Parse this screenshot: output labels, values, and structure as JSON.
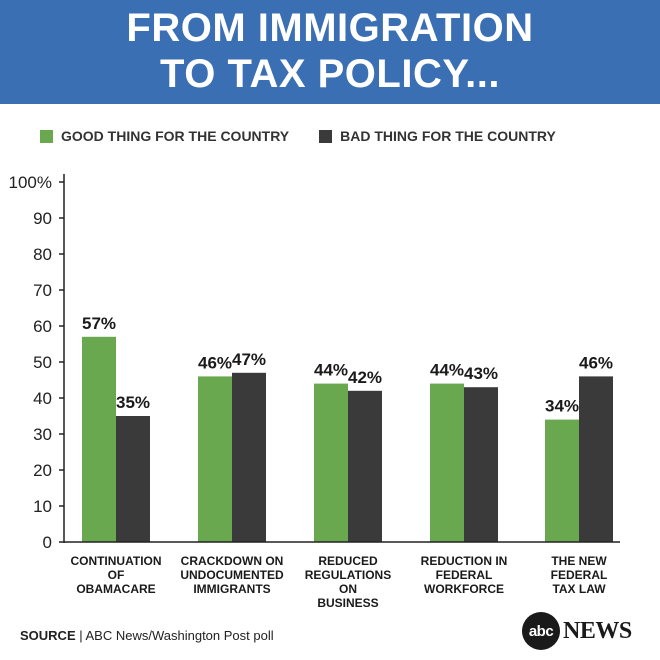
{
  "header": {
    "line1": "FROM IMMIGRATION",
    "line2": "TO TAX POLICY..."
  },
  "legend": {
    "good_label": "GOOD THING FOR THE COUNTRY",
    "bad_label": "BAD THING FOR THE COUNTRY"
  },
  "colors": {
    "good": "#69a84f",
    "bad": "#3a3a3a",
    "banner": "#3a6fb4"
  },
  "chart_data": {
    "type": "bar",
    "categories": [
      [
        "CONTINUATION",
        "OF",
        "OBAMACARE"
      ],
      [
        "CRACKDOWN ON",
        "UNDOCUMENTED",
        "IMMIGRANTS"
      ],
      [
        "REDUCED",
        "REGULATIONS",
        "ON",
        "BUSINESS"
      ],
      [
        "REDUCTION IN",
        "FEDERAL",
        "WORKFORCE"
      ],
      [
        "THE NEW",
        "FEDERAL",
        "TAX LAW"
      ]
    ],
    "series": [
      {
        "name": "GOOD THING FOR THE COUNTRY",
        "values": [
          57,
          46,
          44,
          44,
          34
        ],
        "labels": [
          "57%",
          "46%",
          "44%",
          "44%",
          "34%"
        ]
      },
      {
        "name": "BAD THING FOR THE COUNTRY",
        "values": [
          35,
          47,
          42,
          43,
          46
        ],
        "labels": [
          "35%",
          "47%",
          "42%",
          "43%",
          "46%"
        ]
      }
    ],
    "ylim": [
      0,
      100
    ],
    "yticks": [
      "0",
      "10",
      "20",
      "30",
      "40",
      "50",
      "60",
      "70",
      "80",
      "90",
      "100%"
    ],
    "grid": false
  },
  "footer": {
    "source_label": "SOURCE",
    "source_text": " | ABC News/Washington Post poll",
    "logo_abc": "abc",
    "logo_news": "NEWS"
  }
}
